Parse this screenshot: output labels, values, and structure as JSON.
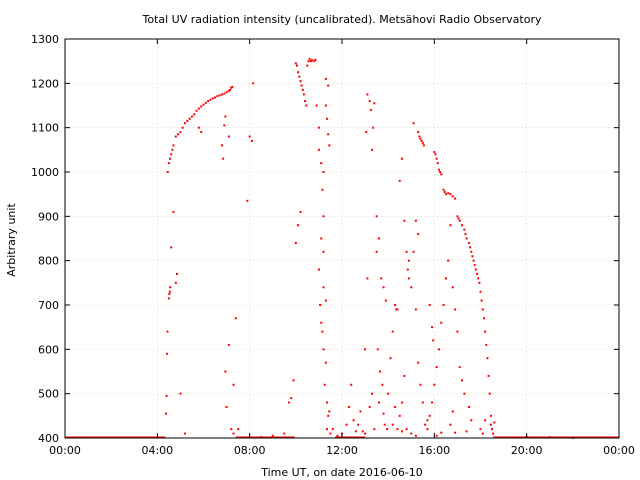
{
  "chart_data": {
    "type": "scatter",
    "title": "Total UV radiation intensity (uncalibrated). Metsähovi Radio Observatory",
    "xlabel": "Time UT, on date 2016-06-10",
    "ylabel": "Arbitrary unit",
    "xlim": [
      0,
      24
    ],
    "ylim": [
      400,
      1300
    ],
    "xticks": [
      0,
      4,
      8,
      12,
      16,
      20,
      24
    ],
    "xtick_labels": [
      "00:00",
      "04:00",
      "08:00",
      "12:00",
      "16:00",
      "20:00",
      "00:00"
    ],
    "yticks": [
      400,
      500,
      600,
      700,
      800,
      900,
      1000,
      1100,
      1200,
      1300
    ],
    "ytick_labels": [
      "400",
      "500",
      "600",
      "700",
      "800",
      "900",
      "1000",
      "1100",
      "1200",
      "1300"
    ],
    "grid": true,
    "marker_color": "#ff0000",
    "series": [
      {
        "points": [
          [
            4.38,
            455
          ],
          [
            4.4,
            495
          ],
          [
            4.42,
            590
          ],
          [
            4.44,
            640
          ],
          [
            4.5,
            715
          ],
          [
            4.52,
            725
          ],
          [
            4.54,
            730
          ],
          [
            4.56,
            740
          ],
          [
            4.6,
            830
          ],
          [
            4.7,
            910
          ],
          [
            4.8,
            750
          ],
          [
            4.85,
            770
          ],
          [
            5.0,
            500
          ],
          [
            5.2,
            410
          ],
          [
            4.45,
            1000
          ],
          [
            4.5,
            1020
          ],
          [
            4.55,
            1030
          ],
          [
            4.6,
            1040
          ],
          [
            4.65,
            1050
          ],
          [
            4.7,
            1060
          ],
          [
            4.8,
            1080
          ],
          [
            4.9,
            1085
          ],
          [
            5.0,
            1090
          ],
          [
            5.1,
            1100
          ],
          [
            5.2,
            1110
          ],
          [
            5.3,
            1115
          ],
          [
            5.4,
            1120
          ],
          [
            5.5,
            1125
          ],
          [
            5.6,
            1130
          ],
          [
            5.7,
            1138
          ],
          [
            5.8,
            1143
          ],
          [
            5.9,
            1148
          ],
          [
            6.0,
            1152
          ],
          [
            6.1,
            1156
          ],
          [
            6.2,
            1160
          ],
          [
            6.3,
            1163
          ],
          [
            6.4,
            1166
          ],
          [
            6.5,
            1168
          ],
          [
            6.6,
            1171
          ],
          [
            6.7,
            1173
          ],
          [
            6.8,
            1175
          ],
          [
            6.9,
            1177
          ],
          [
            7.0,
            1180
          ],
          [
            7.1,
            1183
          ],
          [
            7.15,
            1185
          ],
          [
            7.2,
            1190
          ],
          [
            7.25,
            1192
          ],
          [
            6.95,
            1125
          ],
          [
            6.9,
            1105
          ],
          [
            6.8,
            1060
          ],
          [
            6.85,
            1030
          ],
          [
            7.1,
            1080
          ],
          [
            5.8,
            1100
          ],
          [
            5.9,
            1090
          ],
          [
            7.4,
            670
          ],
          [
            7.3,
            520
          ],
          [
            7.2,
            420
          ],
          [
            7.1,
            610
          ],
          [
            6.95,
            550
          ],
          [
            7.0,
            470
          ],
          [
            7.3,
            410
          ],
          [
            7.5,
            420
          ],
          [
            7.9,
            935
          ],
          [
            8.0,
            1080
          ],
          [
            8.1,
            1070
          ],
          [
            8.15,
            1200
          ],
          [
            9.5,
            410
          ],
          [
            9.7,
            480
          ],
          [
            9.8,
            490
          ],
          [
            9.9,
            530
          ],
          [
            10.0,
            840
          ],
          [
            10.1,
            880
          ],
          [
            10.2,
            910
          ],
          [
            10.0,
            1245
          ],
          [
            10.05,
            1240
          ],
          [
            10.1,
            1225
          ],
          [
            10.15,
            1215
          ],
          [
            10.2,
            1205
          ],
          [
            10.25,
            1195
          ],
          [
            10.3,
            1185
          ],
          [
            10.35,
            1175
          ],
          [
            10.4,
            1160
          ],
          [
            10.45,
            1150
          ],
          [
            10.5,
            1240
          ],
          [
            10.55,
            1250
          ],
          [
            10.6,
            1255
          ],
          [
            10.65,
            1250
          ],
          [
            10.7,
            1252
          ],
          [
            10.8,
            1250
          ],
          [
            10.85,
            1253
          ],
          [
            10.9,
            1150
          ],
          [
            11.0,
            1100
          ],
          [
            11.0,
            1050
          ],
          [
            11.1,
            1020
          ],
          [
            11.15,
            960
          ],
          [
            11.2,
            900
          ],
          [
            11.1,
            850
          ],
          [
            11.2,
            820
          ],
          [
            11.05,
            700
          ],
          [
            11.1,
            660
          ],
          [
            11.15,
            640
          ],
          [
            11.2,
            600
          ],
          [
            11.3,
            570
          ],
          [
            11.25,
            520
          ],
          [
            11.35,
            480
          ],
          [
            11.4,
            450
          ],
          [
            11.3,
            1150
          ],
          [
            11.35,
            1120
          ],
          [
            11.4,
            1085
          ],
          [
            11.45,
            1060
          ],
          [
            11.3,
            1210
          ],
          [
            11.4,
            1195
          ],
          [
            11.2,
            1000
          ],
          [
            11.0,
            780
          ],
          [
            11.2,
            740
          ],
          [
            11.3,
            710
          ],
          [
            11.35,
            420
          ],
          [
            11.5,
            410
          ],
          [
            11.6,
            420
          ],
          [
            11.45,
            460
          ],
          [
            12.2,
            430
          ],
          [
            12.4,
            520
          ],
          [
            12.6,
            415
          ],
          [
            12.8,
            460
          ],
          [
            13.0,
            600
          ],
          [
            13.1,
            760
          ],
          [
            13.05,
            1090
          ],
          [
            13.1,
            1175
          ],
          [
            13.2,
            1160
          ],
          [
            13.25,
            1140
          ],
          [
            13.3,
            1050
          ],
          [
            13.35,
            1100
          ],
          [
            13.4,
            1155
          ],
          [
            13.5,
            900
          ],
          [
            13.6,
            850
          ],
          [
            13.5,
            820
          ],
          [
            13.7,
            760
          ],
          [
            13.8,
            740
          ],
          [
            13.9,
            710
          ],
          [
            13.55,
            600
          ],
          [
            13.65,
            550
          ],
          [
            13.75,
            520
          ],
          [
            13.85,
            430
          ],
          [
            13.95,
            420
          ],
          [
            14.0,
            500
          ],
          [
            14.1,
            580
          ],
          [
            14.2,
            640
          ],
          [
            14.3,
            700
          ],
          [
            14.35,
            690
          ],
          [
            14.4,
            690
          ],
          [
            14.5,
            980
          ],
          [
            14.6,
            1030
          ],
          [
            14.7,
            890
          ],
          [
            14.8,
            820
          ],
          [
            14.9,
            800
          ],
          [
            14.85,
            780
          ],
          [
            15.0,
            740
          ],
          [
            15.1,
            1110
          ],
          [
            15.2,
            690
          ],
          [
            15.3,
            570
          ],
          [
            15.4,
            520
          ],
          [
            15.5,
            480
          ],
          [
            15.6,
            430
          ],
          [
            15.7,
            420
          ],
          [
            15.8,
            700
          ],
          [
            15.9,
            650
          ],
          [
            15.95,
            620
          ],
          [
            15.3,
            1090
          ],
          [
            15.35,
            1080
          ],
          [
            15.4,
            1075
          ],
          [
            15.45,
            1070
          ],
          [
            15.5,
            1065
          ],
          [
            15.55,
            1060
          ],
          [
            16.0,
            1045
          ],
          [
            16.05,
            1040
          ],
          [
            16.1,
            1030
          ],
          [
            16.15,
            1020
          ],
          [
            16.2,
            1005
          ],
          [
            16.25,
            1000
          ],
          [
            16.3,
            995
          ],
          [
            16.4,
            960
          ],
          [
            16.45,
            955
          ],
          [
            16.5,
            950
          ],
          [
            16.6,
            952
          ],
          [
            16.7,
            950
          ],
          [
            16.8,
            945
          ],
          [
            16.9,
            940
          ],
          [
            17.0,
            900
          ],
          [
            17.05,
            895
          ],
          [
            17.1,
            890
          ],
          [
            17.2,
            880
          ],
          [
            17.3,
            870
          ],
          [
            17.35,
            860
          ],
          [
            17.4,
            850
          ],
          [
            17.5,
            840
          ],
          [
            17.55,
            830
          ],
          [
            17.6,
            820
          ],
          [
            17.65,
            810
          ],
          [
            17.7,
            800
          ],
          [
            17.75,
            790
          ],
          [
            17.8,
            780
          ],
          [
            17.85,
            770
          ],
          [
            17.9,
            760
          ],
          [
            17.95,
            750
          ],
          [
            18.0,
            730
          ],
          [
            18.05,
            710
          ],
          [
            18.1,
            690
          ],
          [
            18.15,
            670
          ],
          [
            18.2,
            640
          ],
          [
            18.25,
            610
          ],
          [
            18.3,
            580
          ],
          [
            18.35,
            540
          ],
          [
            18.4,
            500
          ],
          [
            18.45,
            450
          ],
          [
            18.5,
            420
          ],
          [
            18.55,
            410
          ],
          [
            18.6,
            435
          ],
          [
            16.7,
            880
          ],
          [
            16.6,
            800
          ],
          [
            16.5,
            760
          ],
          [
            16.4,
            700
          ],
          [
            16.3,
            660
          ],
          [
            16.2,
            600
          ],
          [
            16.1,
            560
          ],
          [
            16.0,
            520
          ],
          [
            15.9,
            480
          ],
          [
            15.8,
            450
          ],
          [
            15.7,
            440
          ],
          [
            16.8,
            740
          ],
          [
            16.9,
            690
          ],
          [
            17.0,
            640
          ],
          [
            17.1,
            560
          ],
          [
            17.2,
            530
          ],
          [
            17.3,
            500
          ],
          [
            16.8,
            460
          ],
          [
            16.7,
            430
          ],
          [
            17.5,
            470
          ],
          [
            17.6,
            440
          ],
          [
            18.0,
            420
          ],
          [
            18.1,
            410
          ],
          [
            15.2,
            890
          ],
          [
            15.3,
            860
          ],
          [
            15.1,
            820
          ],
          [
            14.9,
            760
          ],
          [
            14.7,
            540
          ],
          [
            14.6,
            480
          ],
          [
            14.5,
            450
          ],
          [
            14.3,
            470
          ],
          [
            13.4,
            420
          ],
          [
            13.0,
            410
          ],
          [
            12.9,
            415
          ],
          [
            12.7,
            430
          ],
          [
            12.5,
            440
          ],
          [
            12.3,
            470
          ],
          [
            12.0,
            410
          ],
          [
            11.8,
            405
          ],
          [
            13.2,
            470
          ],
          [
            13.3,
            500
          ],
          [
            13.6,
            480
          ],
          [
            13.8,
            455
          ],
          [
            14.2,
            430
          ],
          [
            14.4,
            420
          ],
          [
            14.6,
            415
          ],
          [
            14.8,
            420
          ],
          [
            15.0,
            410
          ],
          [
            15.2,
            405
          ],
          [
            16.1,
            405
          ],
          [
            16.3,
            412
          ],
          [
            16.9,
            412
          ],
          [
            17.4,
            415
          ],
          [
            18.2,
            440
          ],
          [
            18.45,
            430
          ],
          [
            20.0,
            403
          ],
          [
            21.0,
            402
          ],
          [
            22.0,
            400
          ],
          [
            9.0,
            405
          ],
          [
            8.5,
            402
          ]
        ]
      }
    ],
    "baseline": [
      {
        "from": 0.0,
        "to": 4.35,
        "y": 400
      },
      {
        "from": 7.4,
        "to": 9.95,
        "y": 400
      },
      {
        "from": 11.7,
        "to": 13.0,
        "y": 400
      },
      {
        "from": 18.55,
        "to": 24.0,
        "y": 400
      }
    ]
  }
}
